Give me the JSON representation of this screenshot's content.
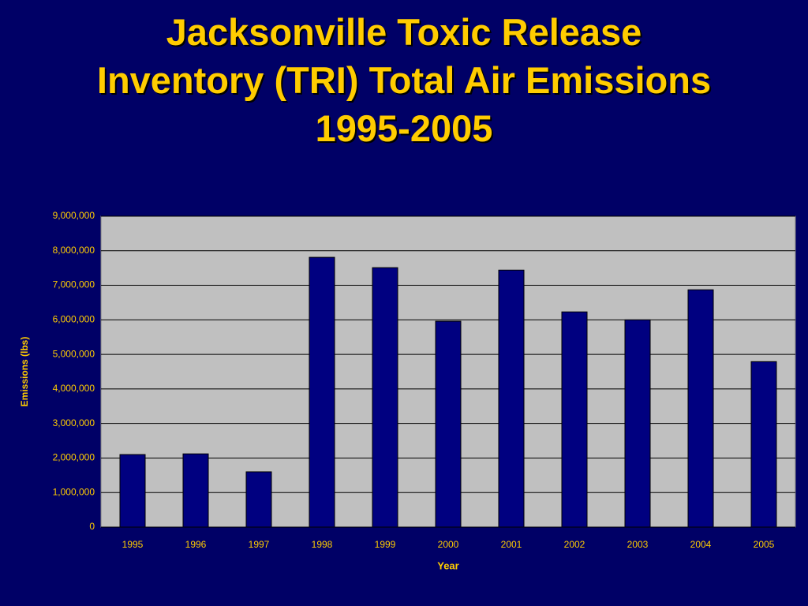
{
  "chart_data": {
    "type": "bar",
    "title": "Jacksonville Toxic Release Inventory (TRI) Total Air Emissions 1995-2005",
    "x_label": "Year",
    "y_label": "Emissions (lbs)",
    "categories": [
      "1995",
      "1996",
      "1997",
      "1998",
      "1999",
      "2000",
      "2001",
      "2002",
      "2003",
      "2004",
      "2005"
    ],
    "values": [
      2100000,
      2120000,
      1600000,
      7810000,
      7510000,
      5960000,
      7440000,
      6230000,
      6000000,
      6870000,
      4790000
    ],
    "color": "#000080",
    "ylim": [
      0,
      9000000
    ],
    "yticks": [
      0,
      {
        "value": 1000000,
        "label": "1,000,000"
      },
      {
        "value": 2000000,
        "label": "2,000,000"
      },
      {
        "value": 3000000,
        "label": "3,000,000"
      },
      {
        "value": 4000000,
        "label": "4,000,000"
      },
      {
        "value": 5000000,
        "label": "5,000,000"
      },
      {
        "value": 6000000,
        "label": "6,000,000"
      },
      {
        "value": 7000000,
        "label": "7,000,000"
      },
      {
        "value": 8000000,
        "label": "8,000,000"
      },
      {
        "value": 9000000,
        "label": "9,000,000"
      }
    ],
    "grid": true
  }
}
